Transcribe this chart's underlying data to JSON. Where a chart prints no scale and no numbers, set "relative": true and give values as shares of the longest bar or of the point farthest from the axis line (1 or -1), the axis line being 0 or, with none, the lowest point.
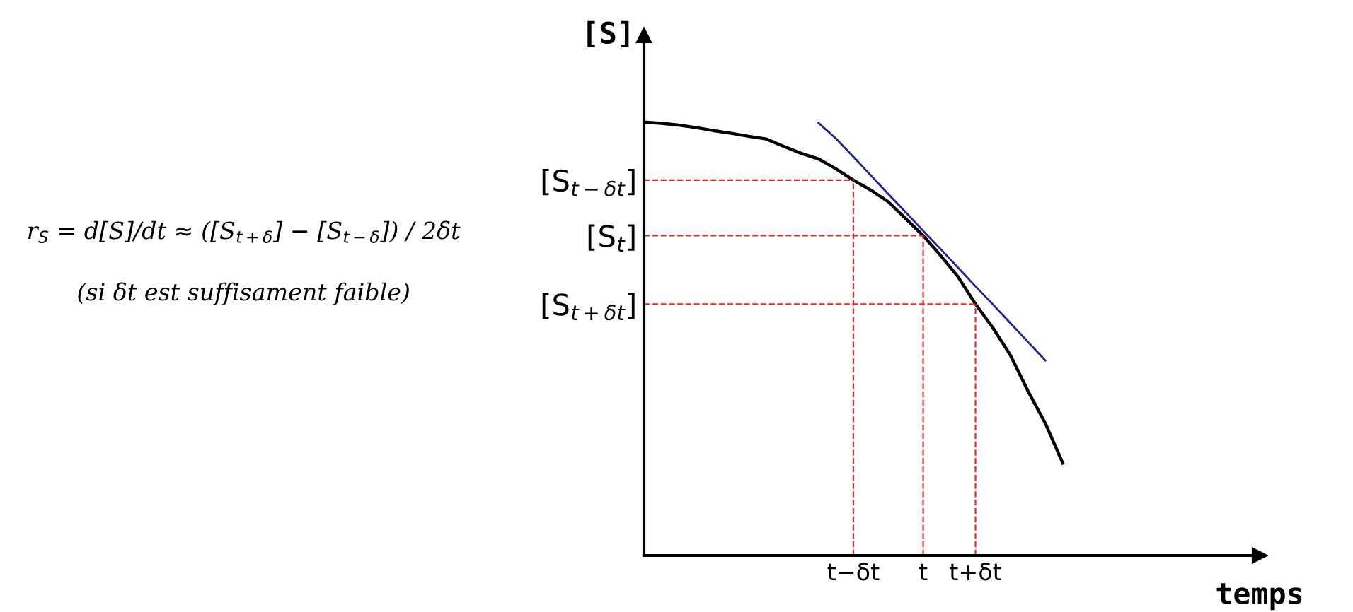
{
  "chart_data": {
    "type": "line",
    "relative": true,
    "xlabel": "temps",
    "ylabel": "[S]",
    "categories": [
      null,
      null,
      null,
      null,
      null,
      null,
      null,
      null,
      null,
      null,
      null,
      null,
      "t−δt",
      null,
      null,
      null,
      "t",
      null,
      null,
      "t+δt",
      null,
      null,
      null,
      null,
      null
    ],
    "series": [
      {
        "values": [
          1.0,
          0.997,
          0.993,
          0.987,
          0.98,
          0.974,
          0.967,
          0.961,
          0.944,
          0.928,
          0.915,
          0.892,
          0.866,
          0.843,
          0.816,
          0.777,
          0.738,
          0.692,
          0.643,
          0.58,
          0.525,
          0.462,
          0.38,
          0.305,
          0.213
        ],
        "color": "#000000"
      },
      {
        "values": [
          null,
          null,
          null,
          null,
          null,
          null,
          null,
          null,
          null,
          null,
          0.998,
          0.962,
          0.92,
          0.877,
          0.834,
          0.792,
          0.749,
          0.707,
          0.664,
          0.621,
          0.579,
          0.536,
          0.493,
          0.45,
          null
        ],
        "color": "#1f1f9f"
      }
    ],
    "ref_lines": [
      {
        "axis": "x",
        "value": "t−δt",
        "color": "#e03030",
        "line_style": "dashed"
      },
      {
        "axis": "x",
        "value": "t",
        "color": "#e03030",
        "line_style": "dashed"
      },
      {
        "axis": "x",
        "value": "t+δt",
        "color": "#e03030",
        "line_style": "dashed"
      },
      {
        "axis": "y",
        "value": 0.866,
        "label": "[S$_{t−δt}$]",
        "color": "#e03030",
        "line_style": "dashed"
      },
      {
        "axis": "y",
        "value": 0.738,
        "label": "[S$_{t}$]",
        "color": "#e03030",
        "line_style": "dashed"
      },
      {
        "axis": "y",
        "value": 0.58,
        "label": "[S$_{t+δt}$]",
        "color": "#e03030",
        "line_style": "dashed"
      }
    ],
    "annotations": [
      "r$_{S}$ = d[S]/dt ≈ ([S$_{t+δ}$] − [S$_{t−δ}$]) / 2δt",
      "(si δt est suffisament faible)"
    ],
    "line_style": "solid",
    "grid": false
  }
}
